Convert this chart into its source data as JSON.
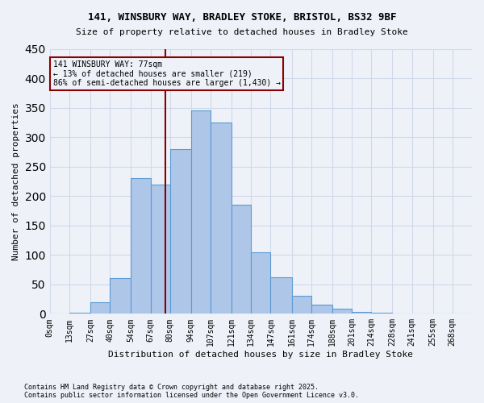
{
  "title1": "141, WINSBURY WAY, BRADLEY STOKE, BRISTOL, BS32 9BF",
  "title2": "Size of property relative to detached houses in Bradley Stoke",
  "xlabel": "Distribution of detached houses by size in Bradley Stoke",
  "ylabel": "Number of detached properties",
  "footer1": "Contains HM Land Registry data © Crown copyright and database right 2025.",
  "footer2": "Contains public sector information licensed under the Open Government Licence v3.0.",
  "annotation_line1": "141 WINSBURY WAY: 77sqm",
  "annotation_line2": "← 13% of detached houses are smaller (219)",
  "annotation_line3": "86% of semi-detached houses are larger (1,430) →",
  "property_size": 77,
  "bar_labels": [
    "0sqm",
    "13sqm",
    "27sqm",
    "40sqm",
    "54sqm",
    "67sqm",
    "80sqm",
    "94sqm",
    "107sqm",
    "121sqm",
    "134sqm",
    "147sqm",
    "161sqm",
    "174sqm",
    "188sqm",
    "201sqm",
    "214sqm",
    "228sqm",
    "241sqm",
    "255sqm",
    "268sqm"
  ],
  "bar_edges": [
    0,
    13,
    27,
    40,
    54,
    67,
    80,
    94,
    107,
    121,
    134,
    147,
    161,
    174,
    188,
    201,
    214,
    228,
    241,
    255,
    268,
    281
  ],
  "bar_heights": [
    0,
    2,
    20,
    60,
    230,
    220,
    280,
    345,
    325,
    185,
    105,
    62,
    30,
    15,
    8,
    3,
    2,
    1,
    0,
    0,
    0
  ],
  "bar_color": "#aec6e8",
  "bar_edge_color": "#5b9bd5",
  "vline_color": "#8b0000",
  "annotation_box_edge": "#8b0000",
  "grid_color": "#d0d8e8",
  "bg_color": "#eef2f8",
  "ylim": [
    0,
    450
  ],
  "yticks": [
    0,
    50,
    100,
    150,
    200,
    250,
    300,
    350,
    400,
    450
  ]
}
